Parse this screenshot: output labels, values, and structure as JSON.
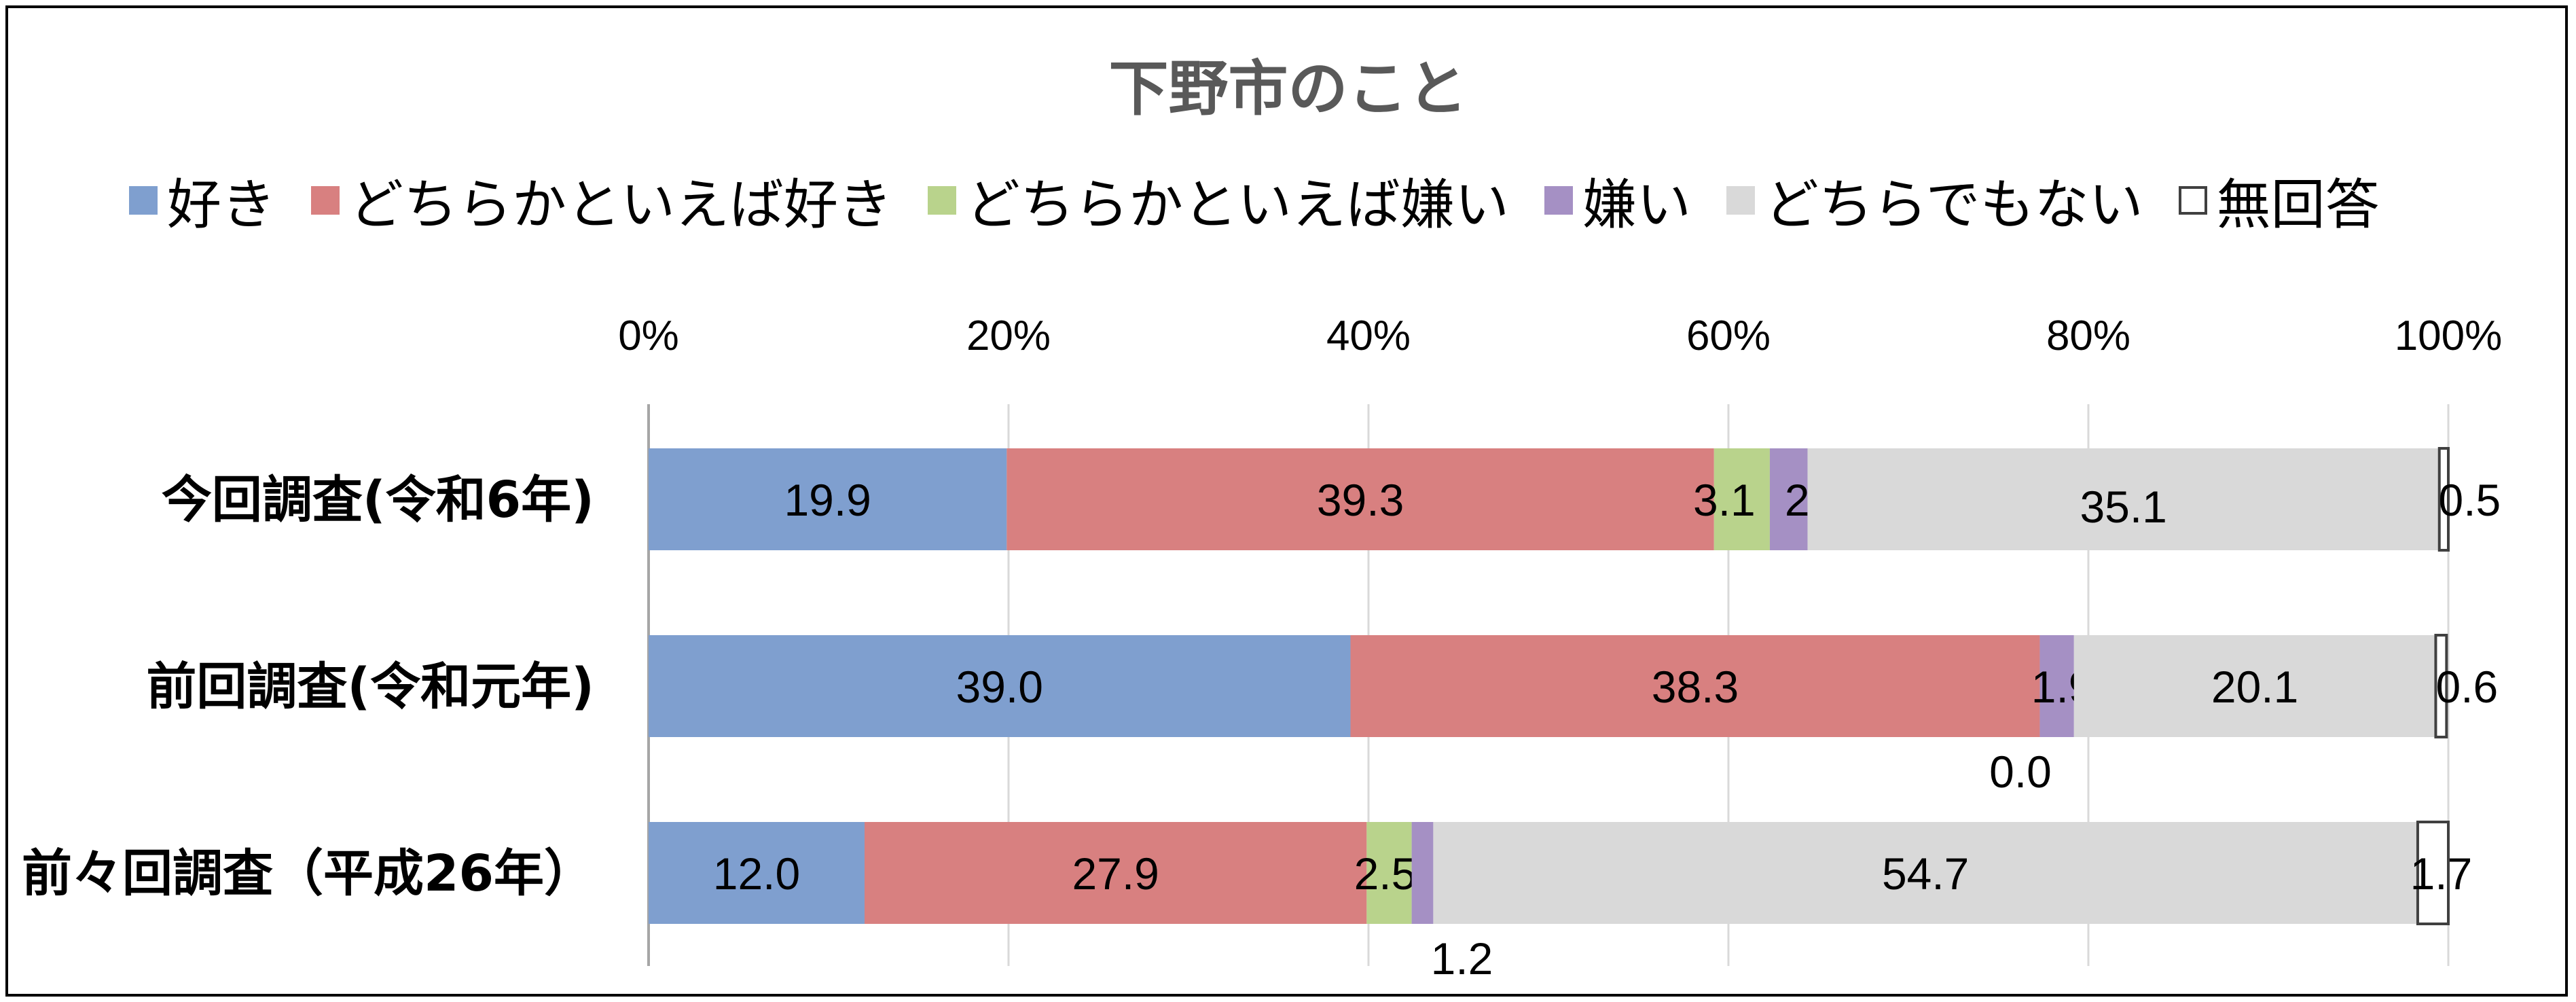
{
  "chart_data": {
    "type": "bar",
    "orientation": "horizontal",
    "stacked": "100%",
    "title": "下野市のこと",
    "categories": [
      "今回調査(令和6年)",
      "前回調査(令和元年)",
      "前々回調査（平成26年）"
    ],
    "series": [
      {
        "name": "好き",
        "color": "#7f9fcf",
        "values": [
          19.9,
          39.0,
          12.0
        ]
      },
      {
        "name": "どちらかといえば好き",
        "color": "#d88080",
        "values": [
          39.3,
          38.3,
          27.9
        ]
      },
      {
        "name": "どちらかといえば嫌い",
        "color": "#b9d38c",
        "values": [
          3.1,
          0.0,
          2.5
        ]
      },
      {
        "name": "嫌い",
        "color": "#a590c4",
        "values": [
          2.1,
          1.9,
          1.2
        ]
      },
      {
        "name": "どちらでもない",
        "color": "#d9d9d9",
        "values": [
          35.1,
          20.1,
          54.7
        ]
      },
      {
        "name": "無回答",
        "color": "#ffffff",
        "values": [
          0.5,
          0.6,
          1.7
        ]
      }
    ],
    "data_labels": [
      [
        "19.9",
        "39.3",
        "3.1",
        "2.1",
        "35.1",
        "0.5"
      ],
      [
        "39.0",
        "38.3",
        "0.0",
        "1.9",
        "20.1",
        "0.6"
      ],
      [
        "12.0",
        "27.9",
        "2.5",
        "1.2",
        "54.7",
        "1.7"
      ]
    ],
    "xlim": [
      0,
      100
    ],
    "xticks": [
      "0%",
      "20%",
      "40%",
      "60%",
      "80%",
      "100%"
    ],
    "grid": true,
    "legend_position": "top"
  }
}
